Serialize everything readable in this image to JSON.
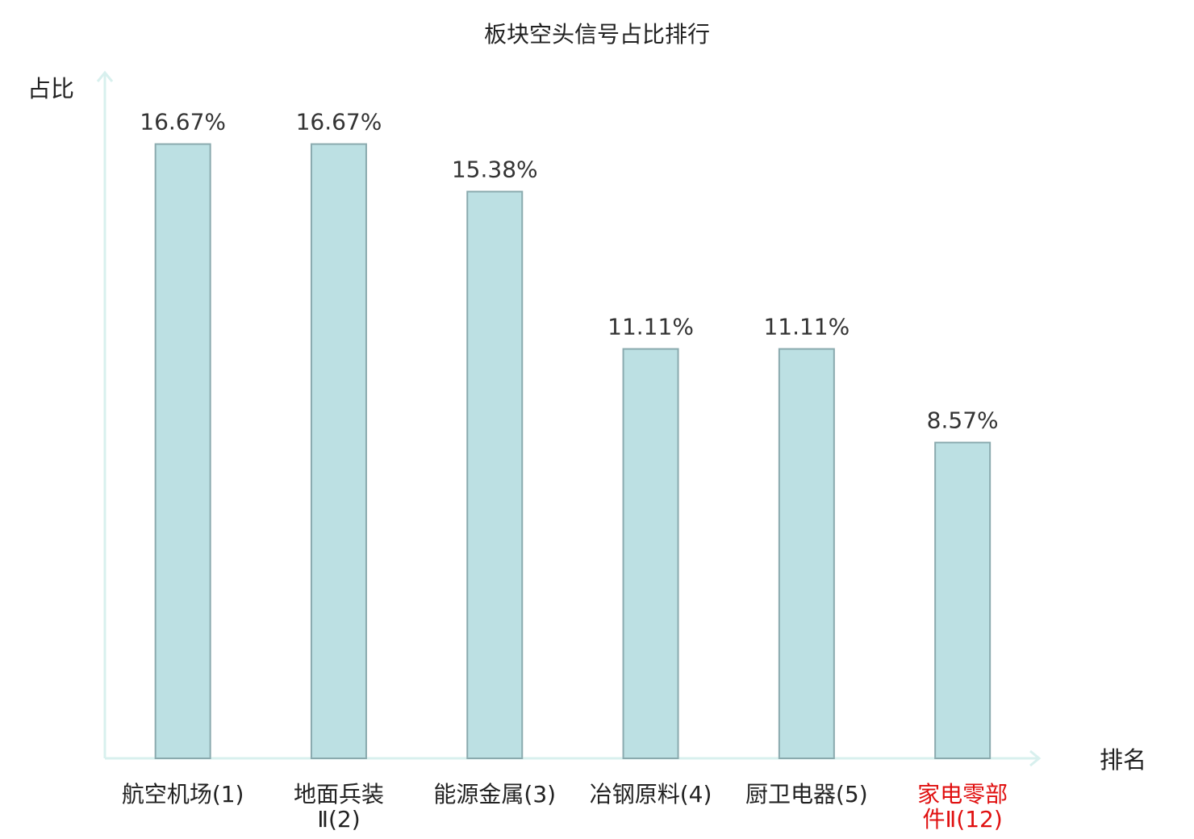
{
  "chart_data": {
    "type": "bar",
    "title": "板块空头信号占比排行",
    "xlabel": "排名",
    "ylabel": "占比",
    "ylim": [
      0,
      18.5
    ],
    "grid": false,
    "categories": [
      [
        "航空机场(1)"
      ],
      [
        "地面兵装",
        "Ⅱ(2)"
      ],
      [
        "能源金属(3)"
      ],
      [
        "冶钢原料(4)"
      ],
      [
        "厨卫电器(5)"
      ],
      [
        "家电零部",
        "件Ⅱ(12)"
      ]
    ],
    "values": [
      16.67,
      16.67,
      15.38,
      11.11,
      11.11,
      8.57
    ],
    "value_labels": [
      "16.67%",
      "16.67%",
      "15.38%",
      "11.11%",
      "11.11%",
      "8.57%"
    ],
    "highlight_index": 5,
    "colors": {
      "bar_fill": "#bce0e3",
      "bar_stroke": "#8aaaae",
      "axis": "#d8f0ee",
      "text": "#222222",
      "value_text": "#333333",
      "highlight": "#e01010"
    }
  }
}
